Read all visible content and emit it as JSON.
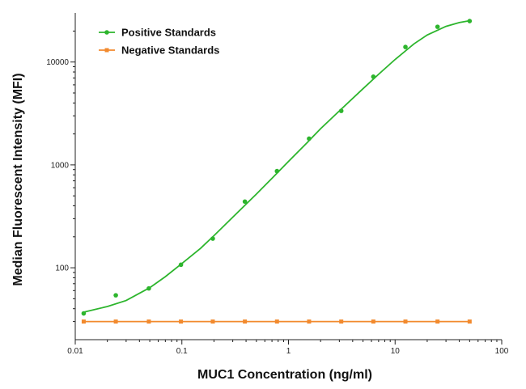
{
  "chart_data": {
    "type": "line",
    "xlabel": "MUC1 Concentration (ng/ml)",
    "ylabel": "Median Fluorescent Intensity (MFI)",
    "x_scale": "log",
    "y_scale": "log",
    "xlim": [
      0.01,
      100
    ],
    "ylim": [
      20,
      30000
    ],
    "x_ticks": [
      {
        "value": 0.01,
        "label": "0.01"
      },
      {
        "value": 0.1,
        "label": "0.1"
      },
      {
        "value": 1,
        "label": "1"
      },
      {
        "value": 10,
        "label": "10"
      },
      {
        "value": 100,
        "label": "100"
      }
    ],
    "y_ticks": [
      {
        "value": 100,
        "label": "100"
      },
      {
        "value": 1000,
        "label": "1000"
      },
      {
        "value": 10000,
        "label": "10000"
      }
    ],
    "grid": false,
    "legend_position": "top-left",
    "series": [
      {
        "name": "Positive Standards",
        "color": "#2db52d",
        "marker": "circle",
        "fit": "sigmoidal curve",
        "points": [
          [
            0.012,
            36
          ],
          [
            0.024,
            54
          ],
          [
            0.049,
            63
          ],
          [
            0.098,
            107
          ],
          [
            0.195,
            192
          ],
          [
            0.39,
            440
          ],
          [
            0.78,
            870
          ],
          [
            1.56,
            1800
          ],
          [
            3.125,
            3350
          ],
          [
            6.25,
            7200
          ],
          [
            12.5,
            14000
          ],
          [
            25,
            22000
          ],
          [
            50,
            25000
          ]
        ],
        "curve": [
          [
            0.012,
            37
          ],
          [
            0.02,
            42
          ],
          [
            0.03,
            48
          ],
          [
            0.05,
            64
          ],
          [
            0.07,
            82
          ],
          [
            0.1,
            110
          ],
          [
            0.15,
            155
          ],
          [
            0.2,
            205
          ],
          [
            0.3,
            310
          ],
          [
            0.5,
            520
          ],
          [
            0.7,
            740
          ],
          [
            1,
            1080
          ],
          [
            1.5,
            1650
          ],
          [
            2,
            2250
          ],
          [
            3,
            3350
          ],
          [
            5,
            5500
          ],
          [
            7,
            7600
          ],
          [
            10,
            10600
          ],
          [
            15,
            15000
          ],
          [
            20,
            18300
          ],
          [
            30,
            22200
          ],
          [
            40,
            24200
          ],
          [
            50,
            25200
          ]
        ]
      },
      {
        "name": "Negative Standards",
        "color": "#f28a2e",
        "marker": "square",
        "points": [
          [
            0.012,
            30
          ],
          [
            0.024,
            30
          ],
          [
            0.049,
            30
          ],
          [
            0.098,
            30
          ],
          [
            0.195,
            30
          ],
          [
            0.39,
            30
          ],
          [
            0.78,
            30
          ],
          [
            1.56,
            30
          ],
          [
            3.125,
            30
          ],
          [
            6.25,
            30
          ],
          [
            12.5,
            30
          ],
          [
            25,
            30
          ],
          [
            50,
            30
          ]
        ]
      }
    ]
  }
}
